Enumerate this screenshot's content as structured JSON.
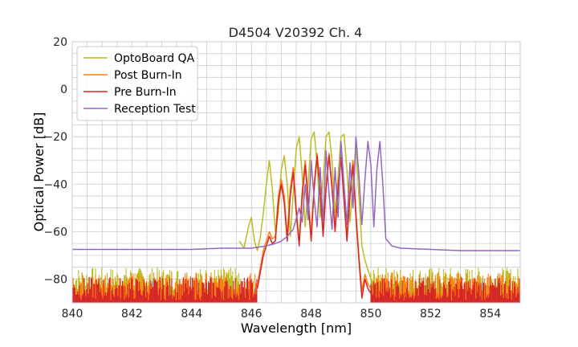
{
  "chart_data": {
    "type": "line",
    "title": "D4504 V20392 Ch. 4",
    "xlabel": "Wavelength [nm]",
    "ylabel": "Optical Power [dB]",
    "xlim": [
      840,
      855
    ],
    "ylim": [
      -90,
      20
    ],
    "x_ticks": [
      "840",
      "842",
      "844",
      "846",
      "848",
      "850",
      "852",
      "854"
    ],
    "y_ticks": [
      "20",
      "0",
      "−20",
      "−40",
      "−60",
      "−80"
    ],
    "grid": true,
    "legend_position": "top-left",
    "series": [
      {
        "name": "OptoBoard QA",
        "color": "#bcbd22",
        "noise_floor": {
          "x_range": [
            840.0,
            845.6
          ],
          "level": -80
        },
        "x": [
          845.6,
          845.75,
          845.9,
          846.0,
          846.1,
          846.2,
          846.3,
          846.4,
          846.5,
          846.6,
          846.7,
          846.8,
          846.9,
          847.0,
          847.1,
          847.2,
          847.3,
          847.4,
          847.5,
          847.6,
          847.7,
          847.8,
          847.9,
          848.0,
          848.1,
          848.2,
          848.3,
          848.4,
          848.5,
          848.6,
          848.7,
          848.8,
          848.9,
          849.0,
          849.1,
          849.2,
          849.3,
          849.4,
          849.5,
          849.6,
          849.7,
          849.8,
          849.9,
          850.0
        ],
        "y": [
          -64,
          -67,
          -58,
          -54,
          -64,
          -68,
          -62,
          -52,
          -40,
          -30,
          -42,
          -60,
          -52,
          -34,
          -28,
          -40,
          -62,
          -44,
          -25,
          -20,
          -36,
          -58,
          -40,
          -21,
          -18,
          -31,
          -54,
          -38,
          -20,
          -18,
          -30,
          -52,
          -37,
          -20,
          -19,
          -34,
          -56,
          -40,
          -24,
          -45,
          -66,
          -72,
          -76,
          -80
        ]
      },
      {
        "name": "Post Burn-In",
        "color": "#ff7f0e",
        "noise_floor": {
          "x_range": [
            840.0,
            846.2
          ],
          "level": -82
        },
        "x": [
          846.2,
          846.4,
          846.6,
          846.7,
          846.8,
          846.9,
          847.0,
          847.1,
          847.2,
          847.3,
          847.4,
          847.5,
          847.6,
          847.7,
          847.8,
          847.9,
          848.0,
          848.1,
          848.2,
          848.3,
          848.4,
          848.5,
          848.6,
          848.7,
          848.8,
          848.9,
          849.0,
          849.1,
          849.2,
          849.3,
          849.4,
          849.5,
          849.6,
          849.7,
          849.8,
          849.9,
          850.0
        ],
        "y": [
          -82,
          -68,
          -60,
          -63,
          -62,
          -45,
          -38,
          -45,
          -62,
          -42,
          -33,
          -50,
          -64,
          -43,
          -30,
          -45,
          -62,
          -40,
          -27,
          -42,
          -60,
          -40,
          -27,
          -40,
          -58,
          -40,
          -28,
          -45,
          -62,
          -42,
          -30,
          -52,
          -70,
          -85,
          -78,
          -82,
          -84
        ]
      },
      {
        "name": "Pre Burn-In",
        "color": "#d62728",
        "noise_floor": {
          "x_range": [
            840.0,
            846.2
          ],
          "level": -84
        },
        "x": [
          846.2,
          846.4,
          846.6,
          846.7,
          846.8,
          846.9,
          847.0,
          847.1,
          847.2,
          847.3,
          847.4,
          847.5,
          847.6,
          847.7,
          847.8,
          847.9,
          848.0,
          848.1,
          848.2,
          848.3,
          848.4,
          848.5,
          848.6,
          848.7,
          848.8,
          848.9,
          849.0,
          849.1,
          849.2,
          849.3,
          849.4,
          849.5,
          849.6,
          849.7,
          849.8,
          849.9,
          850.0
        ],
        "y": [
          -84,
          -70,
          -62,
          -65,
          -64,
          -48,
          -40,
          -48,
          -64,
          -45,
          -35,
          -52,
          -66,
          -45,
          -32,
          -48,
          -64,
          -42,
          -28,
          -44,
          -62,
          -42,
          -28,
          -42,
          -60,
          -42,
          -29,
          -47,
          -64,
          -45,
          -32,
          -54,
          -72,
          -88,
          -80,
          -84,
          -86
        ]
      },
      {
        "name": "Reception Test",
        "color": "#9467bd",
        "x": [
          840.0,
          842.0,
          844.0,
          845.0,
          846.0,
          846.5,
          846.8,
          847.0,
          847.2,
          847.4,
          847.6,
          847.7,
          847.8,
          847.9,
          848.0,
          848.1,
          848.2,
          848.3,
          848.4,
          848.5,
          848.6,
          848.7,
          848.8,
          848.9,
          849.0,
          849.1,
          849.2,
          849.3,
          849.4,
          849.5,
          849.6,
          849.7,
          849.8,
          849.9,
          850.0,
          850.1,
          850.2,
          850.3,
          850.4,
          850.5,
          850.7,
          851.0,
          852.0,
          853.0,
          854.0,
          855.0
        ],
        "y": [
          -67.5,
          -67.5,
          -67.5,
          -67,
          -67,
          -66,
          -65,
          -64,
          -62,
          -59,
          -50,
          -56,
          -40,
          -55,
          -30,
          -46,
          -58,
          -33,
          -56,
          -26,
          -44,
          -59,
          -33,
          -54,
          -22,
          -40,
          -57,
          -31,
          -50,
          -20,
          -36,
          -57,
          -38,
          -22,
          -32,
          -58,
          -34,
          -22,
          -40,
          -63,
          -66,
          -67,
          -67.5,
          -68,
          -68,
          -68
        ]
      }
    ]
  }
}
